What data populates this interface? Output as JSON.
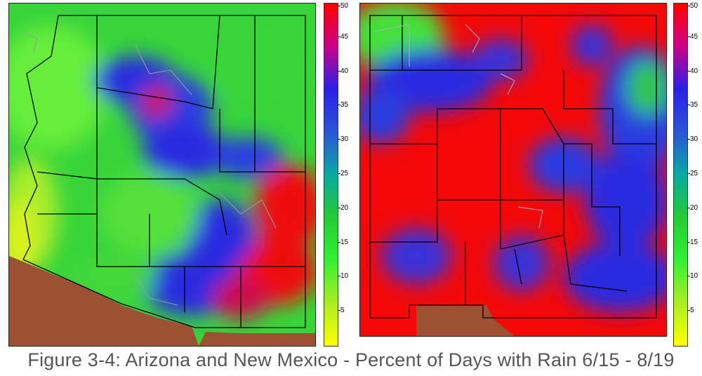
{
  "caption": "Figure 3-4: Arizona and New Mexico - Percent of Days with Rain 6/15 - 8/19",
  "colorbar": {
    "min": 0,
    "max": 50,
    "ticks": [
      "50",
      "45",
      "40",
      "35",
      "30",
      "25",
      "20",
      "15",
      "10",
      "5"
    ],
    "stops": [
      "#ff0000",
      "#cc0088",
      "#2a20e8",
      "#2a55d8",
      "#0aa9a0",
      "#22cc33",
      "#33f033",
      "#aaee22",
      "#ffff00"
    ]
  },
  "maps": [
    {
      "id": "arizona",
      "state": "Arizona",
      "dominant_color": "#3ad53a"
    },
    {
      "id": "new-mexico",
      "state": "New Mexico",
      "dominant_color": "#ff0000"
    }
  ],
  "colors": {
    "mexico_fill": "#9c5232",
    "border": "#000000",
    "minor_boundary": "#9a9aa8"
  }
}
